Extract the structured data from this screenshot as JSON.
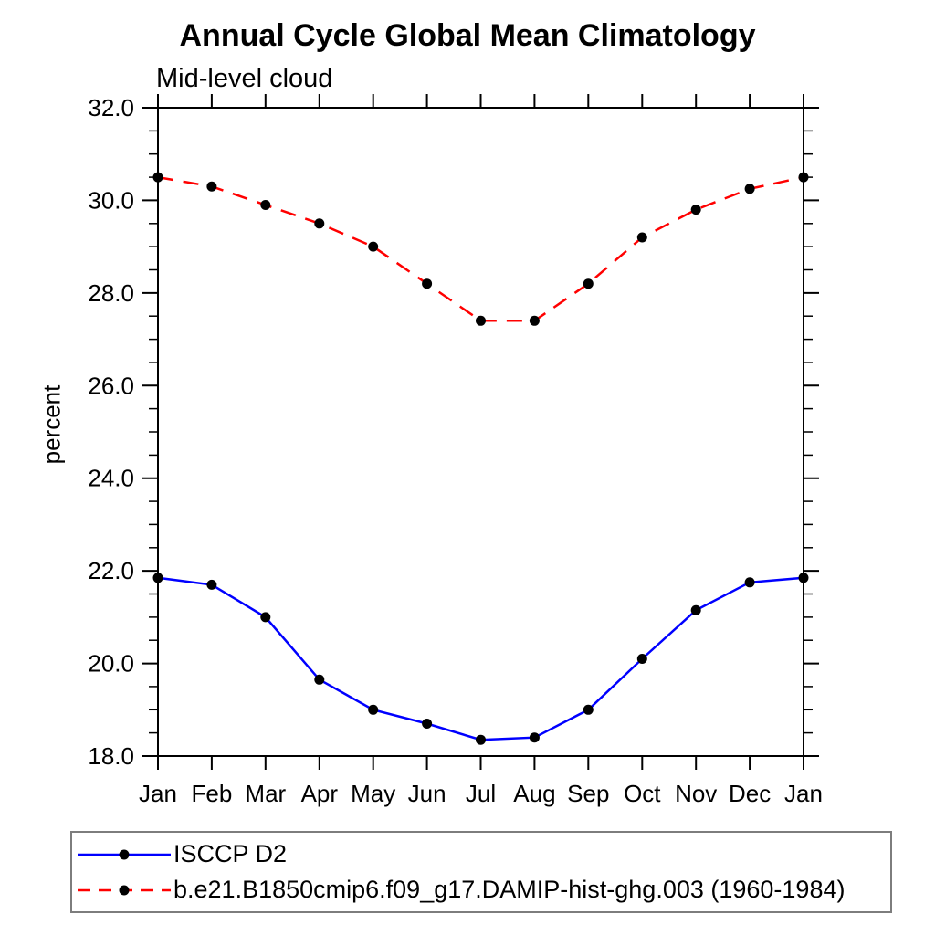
{
  "chart_data": {
    "type": "line",
    "title": "Annual Cycle Global Mean Climatology",
    "subtitle": "Mid-level cloud",
    "ylabel": "percent",
    "xlabel": "",
    "x_tick_labels": [
      "Jan",
      "Feb",
      "Mar",
      "Apr",
      "May",
      "Jun",
      "Jul",
      "Aug",
      "Sep",
      "Oct",
      "Nov",
      "Dec",
      "Jan"
    ],
    "ylim": [
      18.0,
      32.0
    ],
    "y_major_tick_step": 2.0,
    "y_minor_tick_step": 0.5,
    "y_tick_labels": [
      "18.0",
      "20.0",
      "22.0",
      "24.0",
      "26.0",
      "28.0",
      "30.0",
      "32.0"
    ],
    "grid": false,
    "legend_position": "bottom-left-box",
    "axis_color": "#000000",
    "marker": "filled-circle",
    "marker_color": "#000000",
    "series": [
      {
        "name": "ISCCP D2",
        "line_color": "#0000ff",
        "line_style": "solid",
        "values": [
          21.85,
          21.7,
          21.0,
          19.65,
          19.0,
          18.7,
          18.35,
          18.4,
          19.0,
          20.1,
          21.15,
          21.75,
          21.85
        ]
      },
      {
        "name": "b.e21.B1850cmip6.f09_g17.DAMIP-hist-ghg.003 (1960-1984)",
        "line_color": "#ff0000",
        "line_style": "dashed",
        "values": [
          30.5,
          30.3,
          29.9,
          29.5,
          29.0,
          28.2,
          27.4,
          27.4,
          28.2,
          29.2,
          29.8,
          30.25,
          30.5
        ]
      }
    ]
  }
}
